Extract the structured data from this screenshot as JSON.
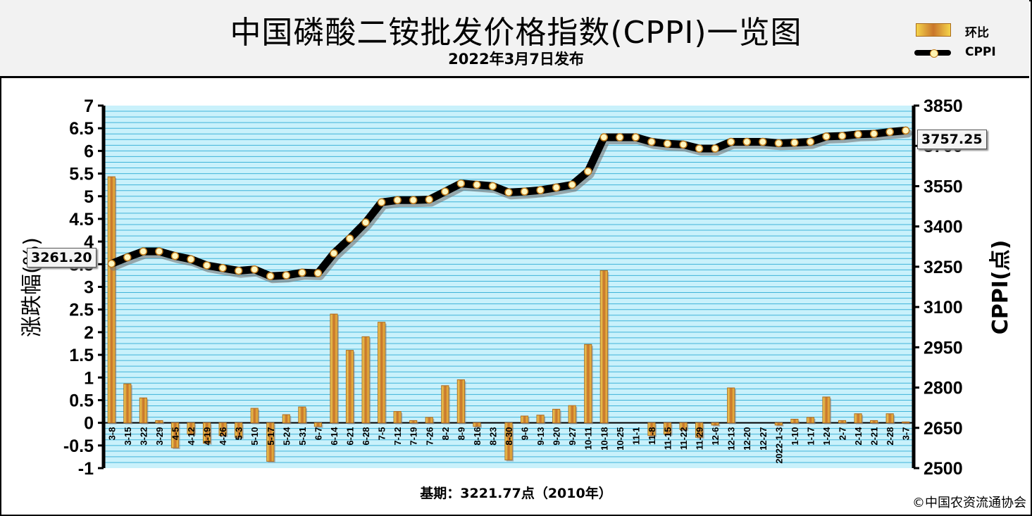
{
  "header": {
    "title": "中国磷酸二铵批发价格指数(CPPI)一览图",
    "subtitle": "2022年3月7日发布"
  },
  "legend": {
    "bar_label": "环比",
    "line_label": "CPPI"
  },
  "footer": {
    "base": "基期：3221.77点（2010年）",
    "copyright": "©中国农资流通协会"
  },
  "callouts": {
    "start": "3261.20",
    "end": "3757.25"
  },
  "chart_data": {
    "type": "bar",
    "xlabel": "",
    "ylabel_left": "涨跌幅(%)",
    "ylabel_right": "CPPI(点)",
    "ylim_left": [
      -1,
      7
    ],
    "ylim_right": [
      2500,
      3850
    ],
    "yticks_left": [
      "-1",
      "-0.5",
      "0",
      "0.5",
      "1",
      "1.5",
      "2",
      "2.5",
      "3",
      "3.5",
      "4",
      "4.5",
      "5",
      "5.5",
      "6",
      "6.5",
      "7"
    ],
    "yticks_right": [
      "2500",
      "2650",
      "2800",
      "2950",
      "3100",
      "3250",
      "3400",
      "3550",
      "3700",
      "3850"
    ],
    "grid": true,
    "legend_position": "top-right",
    "categories": [
      "3-8",
      "3-15",
      "3-22",
      "3-29",
      "4-5",
      "4-12",
      "4-19",
      "4-26",
      "5-3",
      "5-10",
      "5-17",
      "5-24",
      "5-31",
      "6-7",
      "6-14",
      "6-21",
      "6-28",
      "7-5",
      "7-12",
      "7-19",
      "7-26",
      "8-2",
      "8-9",
      "8-16",
      "8-23",
      "8-30",
      "9-6",
      "9-13",
      "9-20",
      "9-27",
      "10-11",
      "10-18",
      "10-25",
      "11-1",
      "11-8",
      "11-15",
      "11-22",
      "11-29",
      "12-6",
      "12-13",
      "12-20",
      "12-27",
      "2022-1-3",
      "1-10",
      "1-17",
      "1-24",
      "2-7",
      "2-14",
      "2-21",
      "2-28",
      "3-7"
    ],
    "series": [
      {
        "name": "环比",
        "type": "bar",
        "axis": "left",
        "values": [
          5.43,
          0.86,
          0.55,
          0.05,
          -0.55,
          -0.25,
          -0.45,
          -0.28,
          -0.32,
          0.32,
          -0.85,
          0.18,
          0.35,
          -0.08,
          2.4,
          1.6,
          1.9,
          2.22,
          0.25,
          0.05,
          0.12,
          0.82,
          0.95,
          -0.08,
          0,
          -0.82,
          0.15,
          0.17,
          0.3,
          0.38,
          1.73,
          3.36,
          0,
          0,
          -0.28,
          -0.25,
          -0.15,
          -0.32,
          -0.05,
          0.77,
          0,
          0,
          -0.05,
          0.08,
          0.12,
          0.57,
          0.05,
          0.2,
          0.05,
          0.2,
          0.02
        ]
      },
      {
        "name": "CPPI",
        "type": "line",
        "axis": "right",
        "values": [
          3261.2,
          3285,
          3307,
          3307,
          3290,
          3278,
          3255,
          3245,
          3235,
          3240,
          3215,
          3218,
          3228,
          3226,
          3300,
          3355,
          3415,
          3490,
          3498,
          3498,
          3500,
          3530,
          3560,
          3555,
          3550,
          3527,
          3530,
          3535,
          3545,
          3555,
          3605,
          3732,
          3732,
          3732,
          3715,
          3708,
          3705,
          3690,
          3690,
          3715,
          3715,
          3715,
          3710,
          3712,
          3715,
          3735,
          3737,
          3743,
          3745,
          3752,
          3757.25
        ]
      }
    ]
  }
}
